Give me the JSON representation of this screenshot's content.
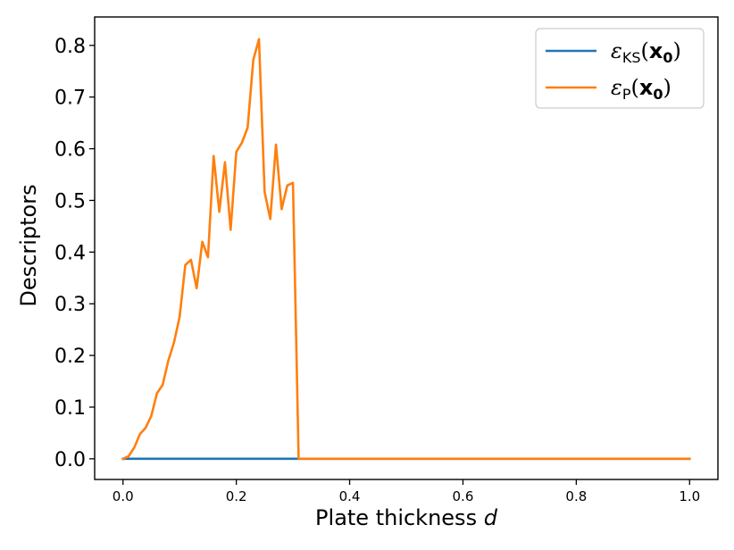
{
  "chart_data": {
    "type": "line",
    "title": "",
    "xlabel": "Plate thickness",
    "xlabel_var": "d",
    "ylabel": "Descriptors",
    "xlim": [
      -0.05,
      1.05
    ],
    "ylim": [
      -0.04,
      0.855
    ],
    "xticks": [
      0.0,
      0.2,
      0.4,
      0.6,
      0.8,
      1.0
    ],
    "xtick_labels": [
      "0.0",
      "0.2",
      "0.4",
      "0.6",
      "0.8",
      "1.0"
    ],
    "yticks": [
      0.0,
      0.1,
      0.2,
      0.3,
      0.4,
      0.5,
      0.6,
      0.7,
      0.8
    ],
    "ytick_labels": [
      "0.0",
      "0.1",
      "0.2",
      "0.3",
      "0.4",
      "0.5",
      "0.6",
      "0.7",
      "0.8"
    ],
    "grid": false,
    "legend_position": "upper-right",
    "series": [
      {
        "name": "ε_KS(x_0)",
        "legend_main": "ε",
        "legend_sub": "KS",
        "legend_arg": "x",
        "legend_arg_sub": "0",
        "color": "#1f77b4",
        "x": [
          0.0,
          0.32,
          0.33,
          1.0
        ],
        "y": [
          0.0,
          0.0,
          0.0,
          0.0
        ]
      },
      {
        "name": "ε_P(x_0)",
        "legend_main": "ε",
        "legend_sub": "P",
        "legend_arg": "x",
        "legend_arg_sub": "0",
        "color": "#ff7f0e",
        "x": [
          0.0,
          0.01,
          0.02,
          0.03,
          0.04,
          0.05,
          0.06,
          0.07,
          0.08,
          0.09,
          0.1,
          0.11,
          0.12,
          0.13,
          0.14,
          0.15,
          0.16,
          0.17,
          0.18,
          0.19,
          0.2,
          0.21,
          0.22,
          0.23,
          0.24,
          0.25,
          0.26,
          0.27,
          0.28,
          0.29,
          0.3,
          0.31,
          0.32,
          0.33,
          0.34,
          1.0
        ],
        "y": [
          0.0,
          0.005,
          0.022,
          0.048,
          0.06,
          0.083,
          0.127,
          0.143,
          0.19,
          0.225,
          0.275,
          0.375,
          0.385,
          0.33,
          0.42,
          0.39,
          0.586,
          0.478,
          0.574,
          0.443,
          0.594,
          0.612,
          0.641,
          0.772,
          0.812,
          0.516,
          0.464,
          0.608,
          0.483,
          0.529,
          0.534,
          0.0,
          0.0,
          0.0,
          0.0,
          0.0
        ]
      }
    ]
  }
}
